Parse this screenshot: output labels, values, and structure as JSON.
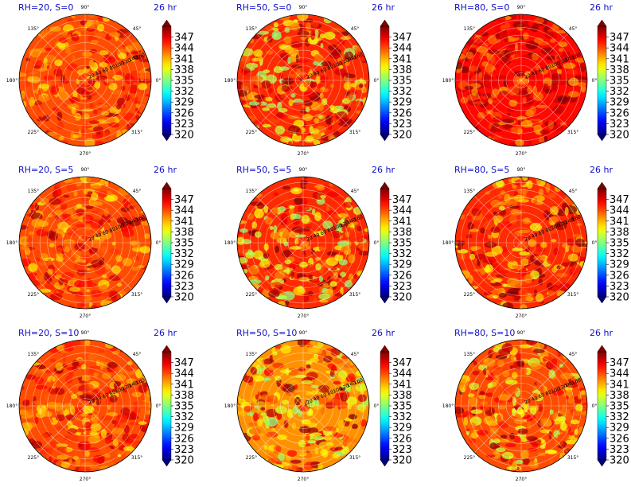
{
  "figure": {
    "panels": [
      {
        "title_left": "RH=20, S=0",
        "title_right": "26 hr"
      },
      {
        "title_left": "RH=50, S=0",
        "title_right": "26 hr"
      },
      {
        "title_left": "RH=80, S=0",
        "title_right": "26 hr"
      },
      {
        "title_left": "RH=20, S=5",
        "title_right": "26 hr"
      },
      {
        "title_left": "RH=50, S=5",
        "title_right": "26 hr"
      },
      {
        "title_left": "RH=80, S=5",
        "title_right": "26 hr"
      },
      {
        "title_left": "RH=20, S=10",
        "title_right": "26 hr"
      },
      {
        "title_left": "RH=50, S=10",
        "title_right": "26 hr"
      },
      {
        "title_left": "RH=80, S=10",
        "title_right": "26 hr"
      }
    ],
    "angle_labels": [
      "90°",
      "45°",
      "0°",
      "315°",
      "270°",
      "225°",
      "180°",
      "135°"
    ],
    "radial_labels": [
      "20",
      "40",
      "60",
      "80",
      "100",
      "120",
      "140",
      "160"
    ],
    "colorbar_ticks": [
      "320",
      "323",
      "326",
      "329",
      "332",
      "335",
      "338",
      "341",
      "344",
      "347"
    ]
  },
  "chart_data": {
    "type": "heatmap",
    "projection": "polar",
    "layout": "3x3 grid",
    "panel_titles": [
      "RH=20, S=0",
      "RH=50, S=0",
      "RH=80, S=0",
      "RH=20, S=5",
      "RH=50, S=5",
      "RH=80, S=5",
      "RH=20, S=10",
      "RH=50, S=10",
      "RH=80, S=10"
    ],
    "time_label": "26 hr",
    "theta_ticks_deg": [
      0,
      45,
      90,
      135,
      180,
      225,
      270,
      315
    ],
    "r_ticks": [
      20,
      40,
      60,
      80,
      100,
      120,
      140,
      160
    ],
    "r_range": [
      0,
      175
    ],
    "colorbar": {
      "colormap": "jet",
      "min": 320,
      "max": 350,
      "ticks": [
        320,
        323,
        326,
        329,
        332,
        335,
        338,
        341,
        344,
        347
      ],
      "extend": "both"
    },
    "grid": true,
    "field_description_approx": [
      {
        "panel": "RH=20, S=0",
        "typical_value": 344,
        "range": [
          339,
          349
        ]
      },
      {
        "panel": "RH=50, S=0",
        "typical_value": 345,
        "range": [
          335,
          350
        ]
      },
      {
        "panel": "RH=80, S=0",
        "typical_value": 346,
        "range": [
          341,
          350
        ]
      },
      {
        "panel": "RH=20, S=5",
        "typical_value": 344,
        "range": [
          339,
          349
        ]
      },
      {
        "panel": "RH=50, S=5",
        "typical_value": 345,
        "range": [
          335,
          350
        ]
      },
      {
        "panel": "RH=80, S=5",
        "typical_value": 345,
        "range": [
          338,
          350
        ]
      },
      {
        "panel": "RH=20, S=10",
        "typical_value": 344,
        "range": [
          339,
          349
        ]
      },
      {
        "panel": "RH=50, S=10",
        "typical_value": 342,
        "range": [
          335,
          350
        ]
      },
      {
        "panel": "RH=80, S=10",
        "typical_value": 344,
        "range": [
          336,
          350
        ]
      }
    ]
  }
}
